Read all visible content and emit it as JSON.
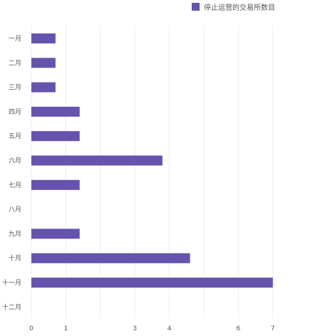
{
  "colors": {
    "bar": "#6653ad",
    "grid": "#ededed",
    "text": "#555555"
  },
  "chart_data": {
    "type": "bar",
    "orientation": "horizontal",
    "categories": [
      "一月",
      "二月",
      "三月",
      "四月",
      "五月",
      "六月",
      "七月",
      "八月",
      "九月",
      "十月",
      "十一月",
      "十二月"
    ],
    "series": [
      {
        "name": "停止运营的交易所数目",
        "values": [
          0.7,
          0.7,
          0.7,
          1.4,
          1.4,
          3.8,
          1.4,
          0,
          1.4,
          4.6,
          7,
          0
        ]
      }
    ],
    "x_ticks": [
      "0",
      "1",
      "3",
      "4",
      "6",
      "7"
    ],
    "xlim": [
      0,
      7
    ],
    "grid": "vertical",
    "legend_position": "top-right"
  }
}
